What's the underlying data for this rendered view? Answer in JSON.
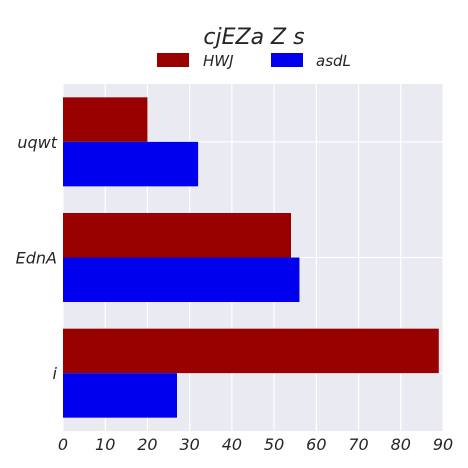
{
  "chart_data": {
    "type": "bar",
    "orientation": "horizontal",
    "title": "cjEZa Z s",
    "xlabel": "",
    "ylabel": "",
    "categories": [
      "uqwt",
      "EdnA",
      "i"
    ],
    "series": [
      {
        "name": "HWJ",
        "color": "#990000",
        "values": [
          20,
          54,
          89
        ]
      },
      {
        "name": "asdL",
        "color": "#0000ee",
        "values": [
          32,
          56,
          27
        ]
      }
    ],
    "xlim": [
      0,
      90
    ],
    "xticks": [
      0,
      10,
      20,
      30,
      40,
      50,
      60,
      70,
      80,
      90
    ],
    "grid": true,
    "legend_position": "top-center",
    "background_color": "#eaeaf2"
  }
}
